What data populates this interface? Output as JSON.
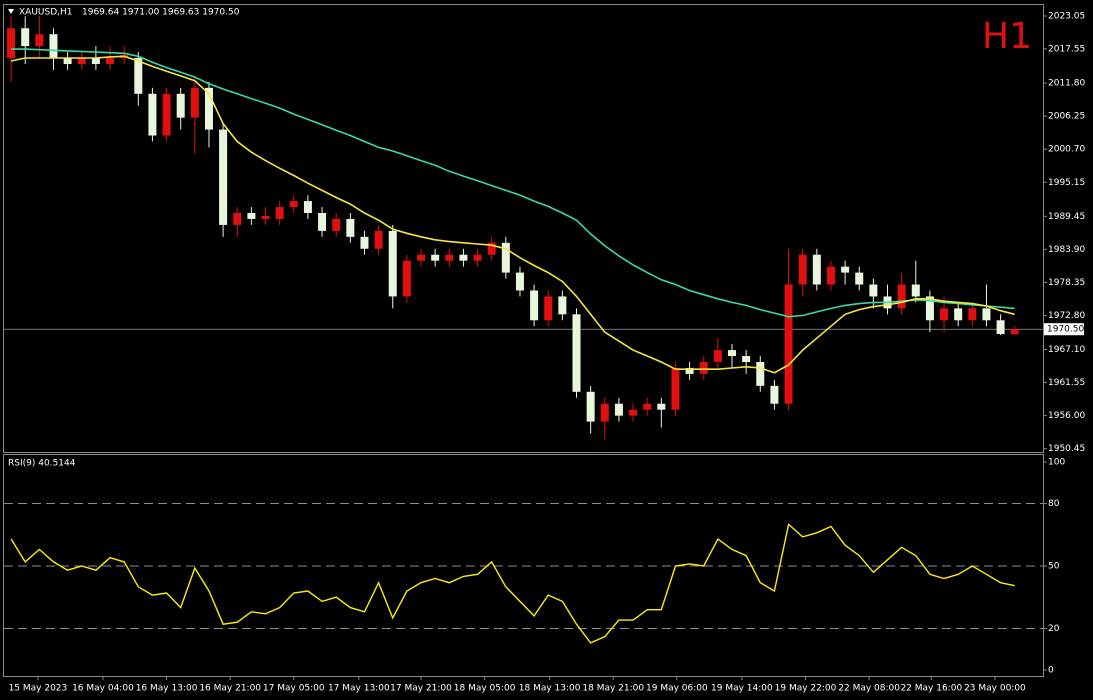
{
  "chart_data": [
    {
      "type": "candlestick",
      "title": "XAUUSD,H1",
      "info": "1969.64 1971.00 1969.63 1970.50",
      "period_label": "H1",
      "up_color": "#e01010",
      "down_color": "#e8f6de",
      "open": [
        2016,
        2021,
        2018,
        2020,
        2016,
        2015,
        2016,
        2015,
        2016,
        2016,
        2010,
        2003,
        2010,
        2006,
        2011,
        2004,
        1988,
        1990,
        1989,
        1989,
        1991,
        1992,
        1990,
        1987,
        1989,
        1986,
        1984,
        1987,
        1976,
        1982,
        1983,
        1982,
        1983,
        1982,
        1983,
        1985,
        1980,
        1977,
        1972,
        1976,
        1973,
        1960,
        1955,
        1958,
        1956,
        1957,
        1958,
        1957,
        1964,
        1963,
        1965,
        1967,
        1966,
        1965,
        1961,
        1958,
        1978,
        1983,
        1978,
        1981,
        1980,
        1978,
        1976,
        1974,
        1978,
        1976,
        1972,
        1974,
        1972,
        1974,
        1972,
        1969.64
      ],
      "high": [
        2023,
        2023,
        2023,
        2021,
        2017,
        2017,
        2018,
        2018,
        2018,
        2017,
        2011,
        2011,
        2011,
        2013,
        2012,
        2005,
        1991,
        1991,
        1991,
        1992,
        1993,
        1993,
        1991,
        1990,
        1990,
        1987,
        1988,
        1988,
        1983,
        1984,
        1984,
        1984,
        1984,
        1984,
        1986,
        1986,
        1981,
        1978,
        1977,
        1977,
        1974,
        1961,
        1959,
        1959,
        1958,
        1959,
        1959,
        1965,
        1965,
        1966,
        1969,
        1968,
        1967,
        1966,
        1962,
        1984,
        1984,
        1984,
        1982,
        1982,
        1981,
        1979,
        1978,
        1980,
        1982,
        1977,
        1976,
        1975,
        1975,
        1978,
        1973,
        1971
      ],
      "low": [
        2012,
        2015,
        2016,
        2014,
        2014,
        2014,
        2014,
        2014,
        2015,
        2008,
        2002,
        2002,
        2004,
        2000,
        2001,
        1986,
        1986,
        1988,
        1988,
        1988,
        1990,
        1989,
        1986,
        1986,
        1985,
        1983,
        1983,
        1974,
        1975,
        1981,
        1981,
        1981,
        1981,
        1981,
        1982,
        1979,
        1976,
        1971,
        1971,
        1972,
        1959,
        1953,
        1952,
        1955,
        1955,
        1956,
        1954,
        1956,
        1962,
        1962,
        1964,
        1964,
        1963,
        1960,
        1957,
        1957,
        1976,
        1977,
        1977,
        1978,
        1977,
        1974,
        1973,
        1973,
        1975,
        1970,
        1970,
        1971,
        1971,
        1971,
        1969.5,
        1969.63
      ],
      "close": [
        2021,
        2018,
        2020,
        2016,
        2015,
        2016,
        2015,
        2016,
        2016.5,
        2010,
        2003,
        2010,
        2006,
        2011,
        2004,
        1988,
        1990,
        1989,
        1989.5,
        1991,
        1992,
        1990,
        1987,
        1989,
        1986,
        1984,
        1987,
        1976,
        1982,
        1983,
        1982,
        1983,
        1982,
        1983,
        1985,
        1980,
        1977,
        1972,
        1976,
        1973,
        1960,
        1955,
        1958,
        1956,
        1957,
        1958,
        1957,
        1964,
        1963,
        1965,
        1967,
        1966,
        1965,
        1961,
        1958,
        1978,
        1983,
        1978,
        1981,
        1980,
        1978,
        1976,
        1974,
        1978,
        1976,
        1972,
        1974,
        1972,
        1974,
        1972,
        1969.7,
        1970.5
      ],
      "lines": [
        {
          "color": "#3ad9a6",
          "values": [
            2017.5,
            2017.5,
            2017.4,
            2017.3,
            2017.2,
            2017.1,
            2017,
            2016.9,
            2016.8,
            2016.3,
            2015.3,
            2014.4,
            2013.6,
            2012.8,
            2011.7,
            2010.8,
            2010,
            2009.2,
            2008.4,
            2007.6,
            2006.6,
            2005.7,
            2004.8,
            2003.9,
            2003,
            2002,
            2001,
            2000.4,
            1999.6,
            1998.8,
            1998,
            1997,
            1996.2,
            1995.4,
            1994.6,
            1993.8,
            1993,
            1992,
            1991.1,
            1990,
            1988.8,
            1986.5,
            1984.5,
            1982.8,
            1981.3,
            1980,
            1978.8,
            1978,
            1977,
            1976.3,
            1975.6,
            1975,
            1974.5,
            1973.8,
            1973.2,
            1972.6,
            1972.8,
            1973.4,
            1974,
            1974.5,
            1974.8,
            1975,
            1975,
            1975.2,
            1975.4,
            1975.3,
            1975,
            1974.8,
            1974.6,
            1974.4,
            1974.2,
            1974
          ]
        },
        {
          "color": "#f5e642",
          "values": [
            2015.5,
            2016,
            2016,
            2016,
            2016,
            2016,
            2016,
            2016.2,
            2016.3,
            2015.5,
            2014.6,
            2013.8,
            2013,
            2012.2,
            2010,
            2005,
            2002,
            2000.2,
            1998.8,
            1997.5,
            1996.3,
            1995,
            1993.8,
            1992.6,
            1991.5,
            1990,
            1988.8,
            1987.3,
            1986.6,
            1986,
            1985.5,
            1985.2,
            1985,
            1984.8,
            1984.6,
            1984,
            1982.5,
            1981.2,
            1980,
            1978.5,
            1976,
            1973,
            1970,
            1968.5,
            1967,
            1966,
            1965,
            1963.8,
            1963.8,
            1963.8,
            1963.8,
            1964,
            1964.2,
            1964,
            1963.2,
            1964.5,
            1967,
            1969,
            1971,
            1973,
            1973.8,
            1974.3,
            1974.6,
            1975,
            1975.6,
            1975.6,
            1975.2,
            1975,
            1974.8,
            1974.4,
            1973.6,
            1973
          ]
        }
      ],
      "current_price": {
        "value": 1970.5,
        "label": "1970.50"
      },
      "xlim": [
        -0.5,
        73
      ],
      "ylim": [
        1949.9,
        2024.9
      ],
      "yticks": [
        2023.05,
        2017.55,
        {
          "value": 2011.8,
          "label": "2011.80"
        },
        2006.25,
        {
          "value": 2000.7,
          "label": "2000.70"
        },
        1995.15,
        1989.45,
        {
          "value": 1983.9,
          "label": "1983.90"
        },
        1978.35,
        {
          "value": 1972.8,
          "label": "1972.80"
        },
        {
          "value": 1967.1,
          "label": "1967.10"
        },
        1961.55,
        {
          "value": 1956,
          "label": "1956.00"
        },
        1950.45
      ],
      "xticks": [
        {
          "value": 1.9,
          "label": "15 May 2023"
        },
        {
          "value": 6.5,
          "label": "16 May 04:00"
        },
        {
          "value": 11,
          "label": "16 May 13:00"
        },
        {
          "value": 15.5,
          "label": "16 May 21:00"
        },
        {
          "value": 20,
          "label": "17 May 05:00"
        },
        {
          "value": 24.6,
          "label": "17 May 13:00"
        },
        {
          "value": 29,
          "label": "17 May 21:00"
        },
        {
          "value": 33.5,
          "label": "18 May 05:00"
        },
        {
          "value": 38.1,
          "label": "18 May 13:00"
        },
        {
          "value": 42.6,
          "label": "18 May 21:00"
        },
        {
          "value": 47.1,
          "label": "19 May 06:00"
        },
        {
          "value": 51.7,
          "label": "19 May 14:00"
        },
        {
          "value": 56.2,
          "label": "19 May 22:00"
        },
        {
          "value": 60.7,
          "label": "22 May 08:00"
        },
        {
          "value": 65.1,
          "label": "22 May 16:00"
        },
        {
          "value": 69.6,
          "label": "23 May 00:00"
        }
      ]
    },
    {
      "type": "line",
      "title": "RSI(9) 40.5144",
      "color": "#ffee00",
      "values": [
        63,
        52,
        58,
        52,
        48,
        50,
        48,
        54,
        52,
        40,
        36,
        37,
        30,
        49,
        38,
        22,
        23,
        28,
        27,
        30,
        37,
        38,
        33,
        35,
        30,
        28,
        42,
        25,
        38,
        42,
        44,
        42,
        45,
        46,
        52,
        40,
        33,
        26,
        36,
        33,
        22,
        13,
        16,
        24,
        24,
        29,
        29,
        50,
        51,
        50,
        63,
        58,
        55,
        42,
        38,
        70,
        64,
        66,
        69,
        60,
        55,
        47,
        53,
        59,
        55,
        46,
        44,
        46,
        50,
        46,
        42,
        40.5144
      ],
      "xlim": [
        -0.5,
        73
      ],
      "ylim": [
        -2.9,
        103.4
      ],
      "yticks": [
        0,
        20,
        50,
        80,
        100
      ],
      "levels": [
        80,
        50,
        20
      ]
    }
  ]
}
